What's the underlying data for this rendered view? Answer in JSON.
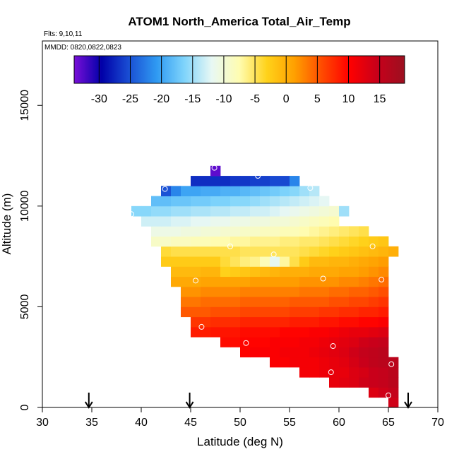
{
  "chart_data": {
    "type": "heatmap",
    "title": "ATOM1 North_America Total_Air_Temp",
    "flights_label": "Flts: 9,10,11",
    "dates_label": "MMDD: 0820,0822,0823",
    "xlabel": "Latitude (deg N)",
    "ylabel": "Altitude (m)",
    "xlim": [
      30,
      70
    ],
    "ylim": [
      0,
      18200
    ],
    "xticks": [
      "30",
      "35",
      "40",
      "45",
      "50",
      "55",
      "60",
      "65",
      "70"
    ],
    "yticks": [
      "0",
      "5000",
      "10000",
      "15000"
    ],
    "ytick_values": [
      0,
      5000,
      10000,
      15000
    ],
    "grid": false,
    "cell_width_deg": 1,
    "cell_height_m": 500,
    "colorbar": {
      "min": -34,
      "max": 19,
      "ticks": [
        "-30",
        "-25",
        "-20",
        "-15",
        "-10",
        "-5",
        "0",
        "5",
        "10",
        "15"
      ],
      "tick_values": [
        -30,
        -25,
        -20,
        -15,
        -10,
        -5,
        0,
        5,
        10,
        15
      ],
      "colors": [
        "#7a0fd8",
        "#0000a8",
        "#1a4fd4",
        "#2f9af2",
        "#7fd4fb",
        "#e8f8f4",
        "#fffcb0",
        "#ffd21a",
        "#ffa000",
        "#ff4a00",
        "#ff0000",
        "#c8001a",
        "#9b1020"
      ]
    },
    "rows": [
      {
        "alt": 500,
        "lat_start": 65,
        "values": [
          14
        ]
      },
      {
        "alt": 1000,
        "lat_start": 63,
        "values": [
          13,
          14,
          15
        ]
      },
      {
        "alt": 1500,
        "lat_start": 59,
        "values": [
          12,
          12.5,
          13,
          14,
          14.5,
          15,
          16
        ]
      },
      {
        "alt": 2000,
        "lat_start": 56,
        "values": [
          11,
          11,
          11.5,
          12,
          12,
          13,
          13.5,
          14.5,
          15,
          16
        ]
      },
      {
        "alt": 2500,
        "lat_start": 53,
        "values": [
          10.5,
          10.5,
          11,
          11,
          11,
          11.5,
          12,
          12.5,
          13.5,
          14.5,
          15.5,
          16,
          16
        ]
      },
      {
        "alt": 3000,
        "lat_start": 50,
        "values": [
          10,
          10.5,
          10.5,
          10.5,
          11,
          11,
          11,
          11.5,
          12,
          12.5,
          13,
          14,
          15,
          15.5,
          16
        ]
      },
      {
        "alt": 3500,
        "lat_start": 48,
        "values": [
          9.5,
          9.5,
          10,
          10,
          10,
          10.5,
          10.5,
          10.5,
          11,
          11,
          11.5,
          12,
          12.5,
          13,
          14,
          14.5,
          15
        ]
      },
      {
        "alt": 4000,
        "lat_start": 45,
        "values": [
          8.5,
          8.5,
          9,
          9,
          9,
          9.5,
          9.5,
          9.5,
          9.5,
          10,
          10,
          10,
          10.5,
          10.5,
          11,
          11.5,
          12,
          12,
          12.5,
          13
        ]
      },
      {
        "alt": 4500,
        "lat_start": 45,
        "values": [
          7,
          7,
          7.5,
          7.5,
          7.5,
          8,
          8,
          8,
          8,
          8,
          8.5,
          8.5,
          8.5,
          9,
          9,
          9.5,
          9.5,
          10,
          10,
          10.5
        ]
      },
      {
        "alt": 5000,
        "lat_start": 44,
        "values": [
          5,
          5,
          5,
          5.5,
          5.5,
          5.5,
          6,
          6,
          6,
          6,
          6,
          6.5,
          6.5,
          6.5,
          7,
          7,
          7.5,
          7.5,
          8,
          8,
          8.5
        ]
      },
      {
        "alt": 5500,
        "lat_start": 44,
        "values": [
          3.5,
          3.5,
          4,
          4,
          4,
          4,
          4.5,
          4.5,
          4.5,
          4.5,
          4.5,
          5,
          5,
          5,
          5,
          5.5,
          5.5,
          6,
          6,
          6.5,
          7
        ]
      },
      {
        "alt": 6000,
        "lat_start": 44,
        "values": [
          2,
          2,
          2.5,
          2.5,
          2.5,
          2.5,
          3,
          3,
          3,
          3,
          3,
          3,
          3.5,
          3.5,
          3.5,
          4,
          4,
          4.5,
          4.5,
          5,
          5.5
        ]
      },
      {
        "alt": 6500,
        "lat_start": 43,
        "values": [
          0.5,
          0.5,
          0.5,
          1,
          1,
          1,
          1,
          1,
          1.5,
          1.5,
          1.5,
          1.5,
          1.5,
          2,
          2,
          2,
          2,
          2.5,
          2.5,
          3,
          3.5,
          4
        ]
      },
      {
        "alt": 7000,
        "lat_start": 43,
        "values": [
          -1,
          -1,
          -1,
          -0.5,
          -0.5,
          -3,
          -2.5,
          -2,
          -1.5,
          -1,
          -0.5,
          0,
          0,
          0,
          0.5,
          0.5,
          0.5,
          1,
          1,
          1.5,
          2,
          2.5
        ]
      },
      {
        "alt": 7500,
        "lat_start": 42,
        "values": [
          -2.5,
          -2.5,
          -2.5,
          -2.5,
          -2.5,
          -2.5,
          -4,
          -5,
          -6,
          -6.5,
          -8,
          -12,
          -7,
          -4.5,
          -2.5,
          -1,
          -1,
          -0.5,
          -0.5,
          0,
          0.5,
          1,
          1.5
        ]
      },
      {
        "alt": 8000,
        "lat_start": 42,
        "values": [
          -4,
          -4.5,
          -4.5,
          -4.5,
          -4.5,
          -4.5,
          -4.5,
          -4.5,
          -5,
          -5,
          -5,
          -5,
          -5,
          -5,
          -4.5,
          -4,
          -3.5,
          -3,
          -2.5,
          -2,
          -1.5,
          -1,
          -0.5,
          0
        ]
      },
      {
        "alt": 8500,
        "lat_start": 41,
        "values": [
          -9,
          -9,
          -8.5,
          -8.5,
          -8,
          -8,
          -7.5,
          -7.5,
          -7,
          -7,
          -6.5,
          -6.5,
          -6.5,
          -6,
          -6,
          -5.5,
          -5.5,
          -5,
          -4.5,
          -4,
          -3.5,
          -3,
          -2.5,
          -2
        ]
      },
      {
        "alt": 9000,
        "lat_start": 41,
        "values": [
          -11,
          -11,
          -11,
          -10.5,
          -10.5,
          -10,
          -10,
          -9.5,
          -9.5,
          -9,
          -9,
          -8.5,
          -8.5,
          -8,
          -8,
          -7.5,
          -7,
          -6.5,
          -6,
          -5.5,
          -5,
          -4.5
        ]
      },
      {
        "alt": 9500,
        "lat_start": 40,
        "values": [
          -13,
          -13,
          -13,
          -12.5,
          -12.5,
          -12,
          -12,
          -11.5,
          -11.5,
          -11,
          -11,
          -10.5,
          -10.5,
          -10,
          -10,
          -9.5,
          -9,
          -8.5,
          -8,
          -7.5
        ]
      },
      {
        "alt": 10000,
        "lat_start": 39,
        "values": [
          -16,
          -16,
          -15.5,
          -15.5,
          -15,
          -15,
          -14.5,
          -14.5,
          -14,
          -14,
          -13.5,
          -13.5,
          -13,
          -13,
          -12.5,
          -12,
          -11.5,
          -11,
          -10.5,
          -10,
          -9.5,
          -15
        ]
      },
      {
        "alt": 10500,
        "lat_start": 41,
        "values": [
          -18,
          -18,
          -17.5,
          -17.5,
          -17,
          -17,
          -16.5,
          -16.5,
          -16,
          -16,
          -15.5,
          -15,
          -14.5,
          -14,
          -13.5,
          -13,
          -12.5,
          -12
        ]
      },
      {
        "alt": 11000,
        "lat_start": 42,
        "values": [
          -25,
          -22,
          -20,
          -20,
          -19.5,
          -19.5,
          -19,
          -19,
          -18.5,
          -18,
          -17.5,
          -17,
          -16.5,
          -16,
          -15,
          -14
        ]
      },
      {
        "alt": 11500,
        "lat_start": 45,
        "values": [
          -27,
          -27,
          -27,
          -27,
          -26.5,
          -26.5,
          -26,
          -26,
          -25.5,
          -25.5,
          -22
        ]
      },
      {
        "alt": 12000,
        "lat_start": 47,
        "values": [
          -33
        ]
      }
    ],
    "flight_points": [
      {
        "lat": 47.4,
        "alt": 11900
      },
      {
        "lat": 51.8,
        "alt": 11500
      },
      {
        "lat": 42.4,
        "alt": 10850
      },
      {
        "lat": 57.1,
        "alt": 10900
      },
      {
        "lat": 39.0,
        "alt": 9600
      },
      {
        "lat": 49.0,
        "alt": 8000
      },
      {
        "lat": 63.4,
        "alt": 8000
      },
      {
        "lat": 53.4,
        "alt": 7600
      },
      {
        "lat": 45.5,
        "alt": 6300
      },
      {
        "lat": 58.4,
        "alt": 6400
      },
      {
        "lat": 64.3,
        "alt": 6350
      },
      {
        "lat": 46.1,
        "alt": 4000
      },
      {
        "lat": 50.6,
        "alt": 3200
      },
      {
        "lat": 59.4,
        "alt": 3050
      },
      {
        "lat": 65.3,
        "alt": 2150
      },
      {
        "lat": 59.2,
        "alt": 1750
      },
      {
        "lat": 65.0,
        "alt": 600
      }
    ],
    "arrows_lat": [
      34.7,
      44.9,
      67.0
    ]
  }
}
